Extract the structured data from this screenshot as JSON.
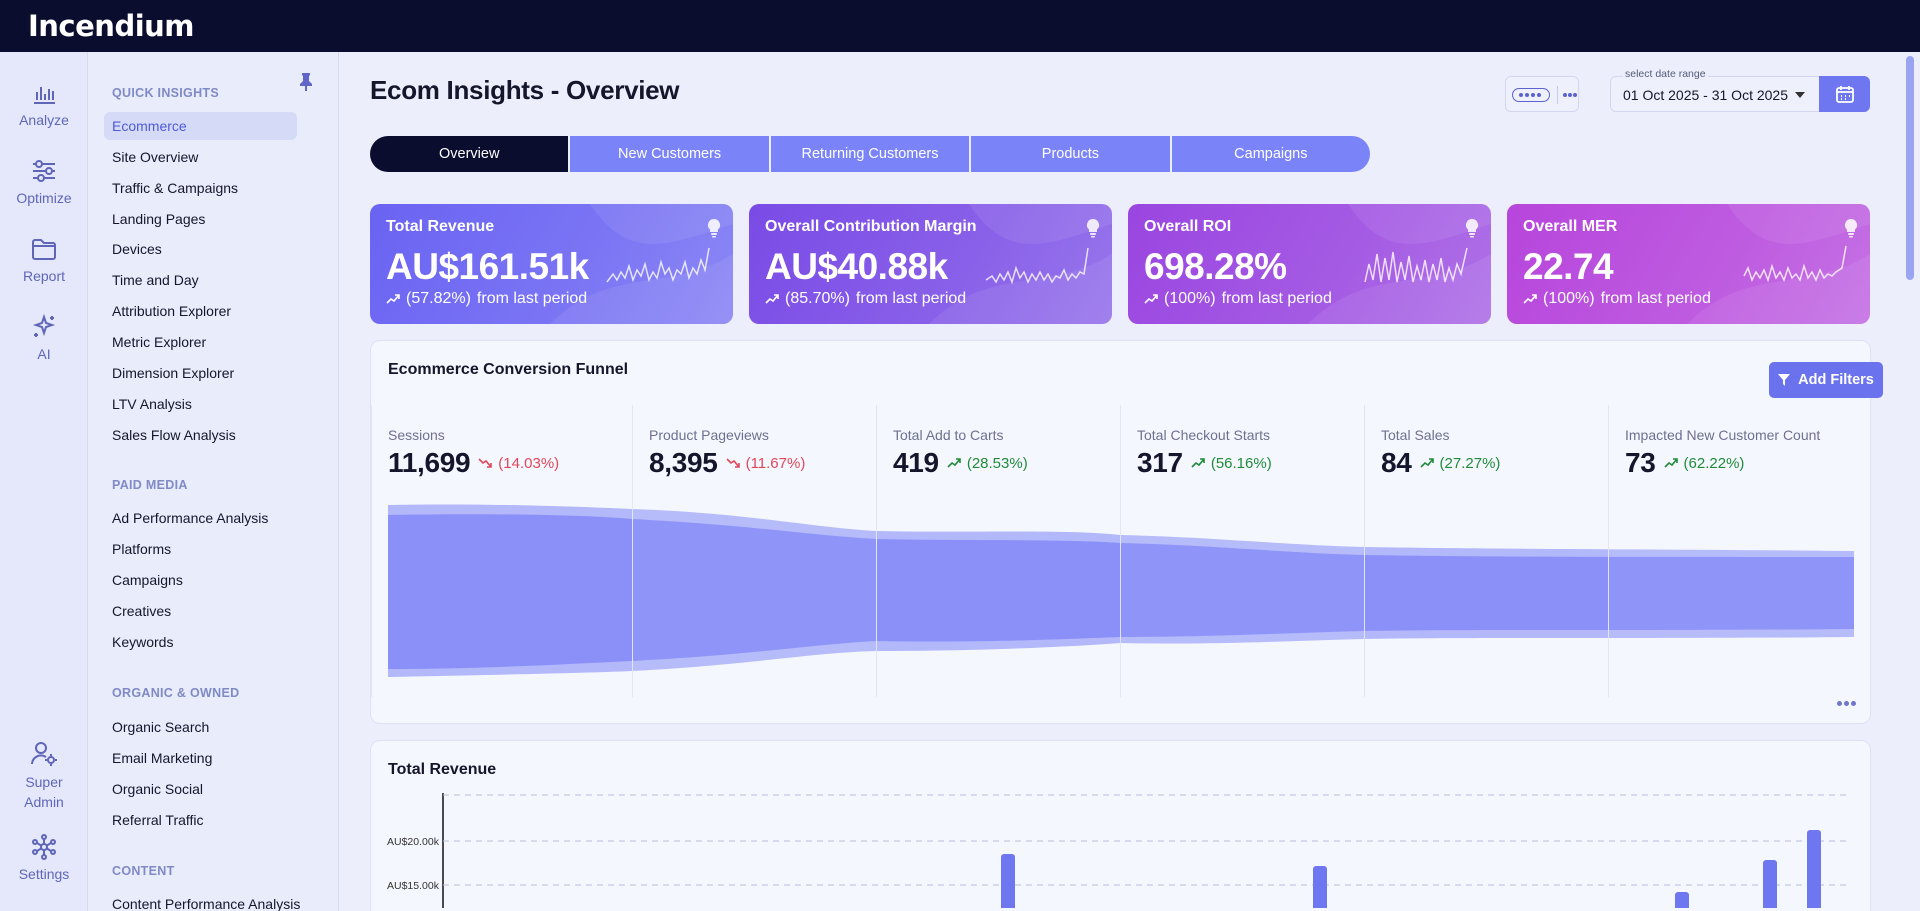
{
  "app": {
    "logo": "Incendium"
  },
  "rail": [
    {
      "label": "Analyze",
      "icon": "bar-chart-icon"
    },
    {
      "label": "Optimize",
      "icon": "sliders-icon"
    },
    {
      "label": "Report",
      "icon": "folder-icon"
    },
    {
      "label": "AI",
      "icon": "sparkles-icon"
    },
    {
      "label": "Super Admin",
      "icon": "user-gear-icon"
    },
    {
      "label": "Settings",
      "icon": "network-icon"
    }
  ],
  "nav": {
    "sections": [
      {
        "title": "QUICK INSIGHTS",
        "items": [
          "Ecommerce",
          "Site Overview",
          "Traffic & Campaigns",
          "Landing Pages",
          "Devices",
          "Time and Day",
          "Attribution Explorer",
          "Metric Explorer",
          "Dimension Explorer",
          "LTV Analysis",
          "Sales Flow Analysis"
        ]
      },
      {
        "title": "PAID MEDIA",
        "items": [
          "Ad Performance Analysis",
          "Platforms",
          "Campaigns",
          "Creatives",
          "Keywords"
        ]
      },
      {
        "title": "ORGANIC & OWNED",
        "items": [
          "Organic Search",
          "Email Marketing",
          "Organic Social",
          "Referral Traffic"
        ]
      },
      {
        "title": "CONTENT",
        "items": [
          "Content Performance Analysis"
        ]
      }
    ],
    "active": "Ecommerce"
  },
  "header": {
    "title": "Ecom Insights - Overview",
    "date_label": "select date range",
    "date_value": "01 Oct 2025 - 31 Oct 2025"
  },
  "tabs": [
    "Overview",
    "New Customers",
    "Returning Customers",
    "Products",
    "Campaigns"
  ],
  "active_tab": "Overview",
  "kpis": [
    {
      "title": "Total Revenue",
      "value": "AU$161.51k",
      "change": "(57.82%)",
      "suffix": "from last period",
      "color": "#6a63f3"
    },
    {
      "title": "Overall Contribution Margin",
      "value": "AU$40.88k",
      "change": "(85.70%)",
      "suffix": "from last period",
      "color": "#7a4be6"
    },
    {
      "title": "Overall ROI",
      "value": "698.28%",
      "change": "(100%)",
      "suffix": "from last period",
      "color": "#9a45e0"
    },
    {
      "title": "Overall MER",
      "value": "22.74",
      "change": "(100%)",
      "suffix": "from last period",
      "color": "#b745dc"
    }
  ],
  "funnel": {
    "title": "Ecommerce Conversion Funnel",
    "filter_label": "Add Filters",
    "steps": [
      {
        "label": "Sessions",
        "value": "11,699",
        "change": "(14.03%)",
        "dir": "down"
      },
      {
        "label": "Product Pageviews",
        "value": "8,395",
        "change": "(11.67%)",
        "dir": "down"
      },
      {
        "label": "Total Add to Carts",
        "value": "419",
        "change": "(28.53%)",
        "dir": "up"
      },
      {
        "label": "Total Checkout Starts",
        "value": "317",
        "change": "(56.16%)",
        "dir": "up"
      },
      {
        "label": "Total Sales",
        "value": "84",
        "change": "(27.27%)",
        "dir": "up"
      },
      {
        "label": "Impacted New Customer Count",
        "value": "73",
        "change": "(62.22%)",
        "dir": "up"
      }
    ]
  },
  "revenue": {
    "title": "Total Revenue",
    "ticks": [
      "AU$20.00k",
      "AU$15.00k"
    ]
  },
  "colors": {
    "accent": "#6f77f0",
    "dark": "#0a0d2e",
    "down": "#e0475a",
    "up": "#1f8b3a"
  }
}
